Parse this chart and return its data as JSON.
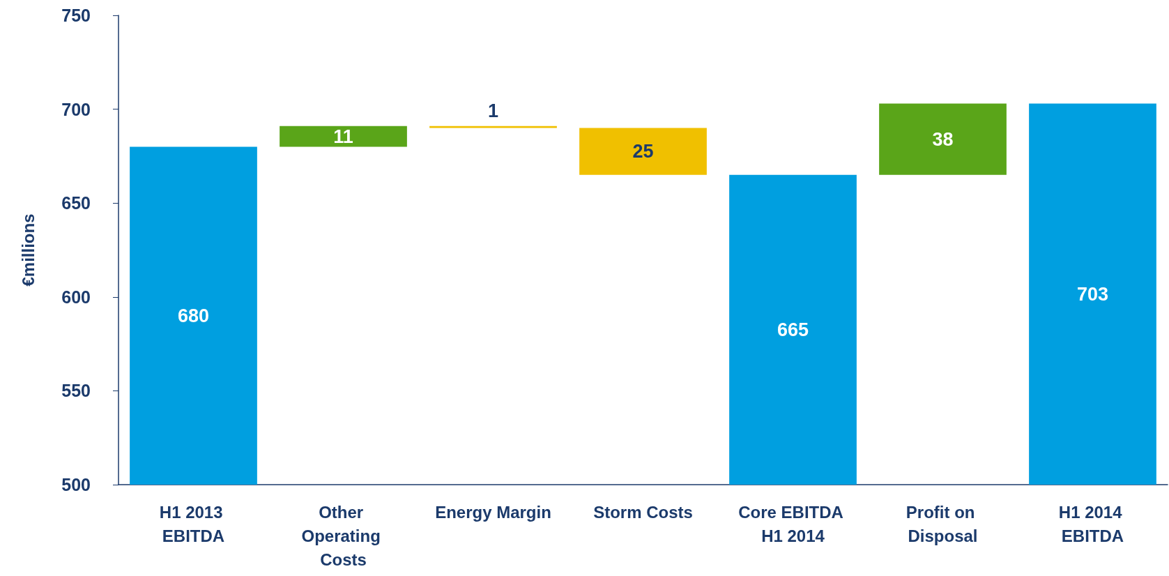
{
  "chart_data": {
    "type": "bar",
    "ylabel": "€millions",
    "categories": [
      "H1 2013 EBITDA",
      "Other Operating Costs",
      "Energy Margin",
      "Storm Costs",
      "Core EBITDA H1 2014",
      "Profit on Disposal",
      "H1 2014 EBITDA"
    ],
    "values": [
      680,
      11,
      1,
      25,
      665,
      38,
      703
    ],
    "base": [
      null,
      680,
      690,
      665,
      null,
      665,
      null
    ],
    "colors": [
      "#009fe0",
      "#5aa519",
      "#f0c000",
      "#f0c000",
      "#009fe0",
      "#5aa519",
      "#009fe0"
    ],
    "ylim": [
      500,
      750
    ],
    "yticks": [
      500,
      550,
      600,
      650,
      700,
      750
    ],
    "data_labels": true
  }
}
